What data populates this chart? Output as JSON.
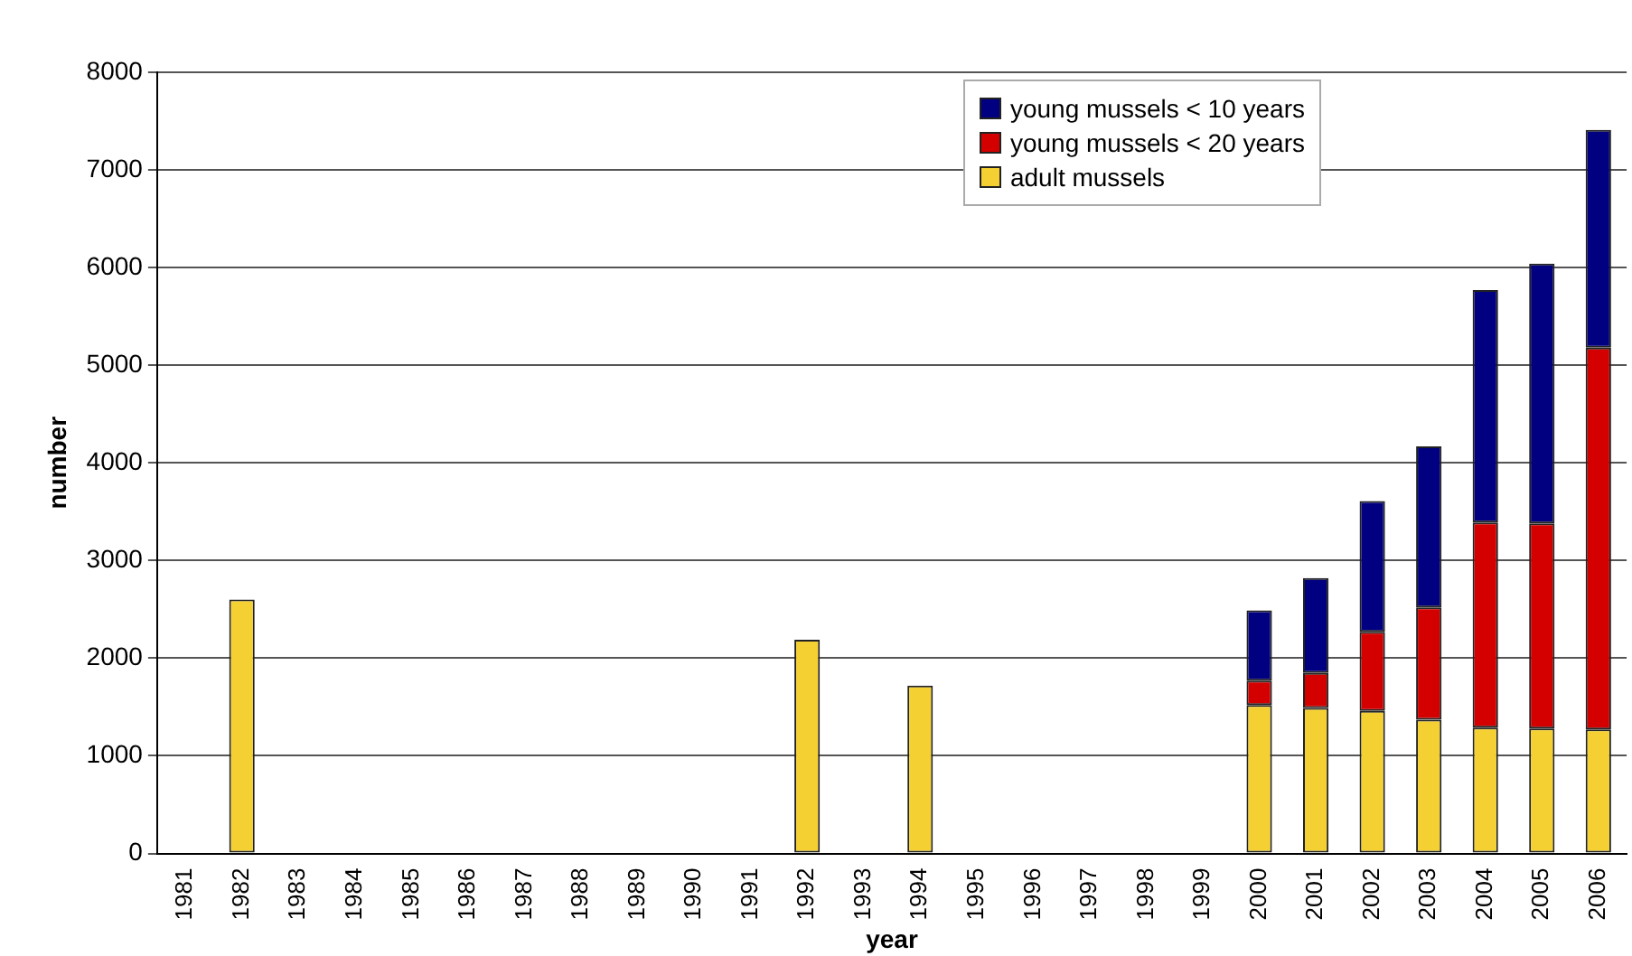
{
  "chart_data": {
    "type": "bar",
    "stacked": true,
    "xlabel": "year",
    "ylabel": "number",
    "categories": [
      "1981",
      "1982",
      "1983",
      "1984",
      "1985",
      "1986",
      "1987",
      "1988",
      "1989",
      "1990",
      "1991",
      "1992",
      "1993",
      "1994",
      "1995",
      "1996",
      "1997",
      "1998",
      "1999",
      "2000",
      "2001",
      "2002",
      "2003",
      "2004",
      "2005",
      "2006"
    ],
    "series": [
      {
        "name": "adult mussels",
        "color": "#f5d033",
        "values": [
          null,
          2600,
          null,
          null,
          null,
          null,
          null,
          null,
          null,
          null,
          null,
          2190,
          null,
          1720,
          null,
          null,
          null,
          null,
          null,
          1520,
          1490,
          1460,
          1370,
          1290,
          1280,
          1270
        ]
      },
      {
        "name": "young mussels < 20 years",
        "color": "#d40000",
        "values": [
          null,
          null,
          null,
          null,
          null,
          null,
          null,
          null,
          null,
          null,
          null,
          null,
          null,
          null,
          null,
          null,
          null,
          null,
          null,
          250,
          360,
          810,
          1150,
          2100,
          2100,
          3910
        ]
      },
      {
        "name": "young mussels < 10 years",
        "color": "#000080",
        "values": [
          null,
          null,
          null,
          null,
          null,
          null,
          null,
          null,
          null,
          null,
          null,
          null,
          null,
          null,
          null,
          null,
          null,
          null,
          null,
          720,
          970,
          1340,
          1650,
          2380,
          2660,
          2230
        ]
      }
    ],
    "ylim": [
      0,
      8000
    ],
    "yticks": [
      0,
      1000,
      2000,
      3000,
      4000,
      5000,
      6000,
      7000,
      8000
    ],
    "grid": "y",
    "legend": "top right"
  }
}
